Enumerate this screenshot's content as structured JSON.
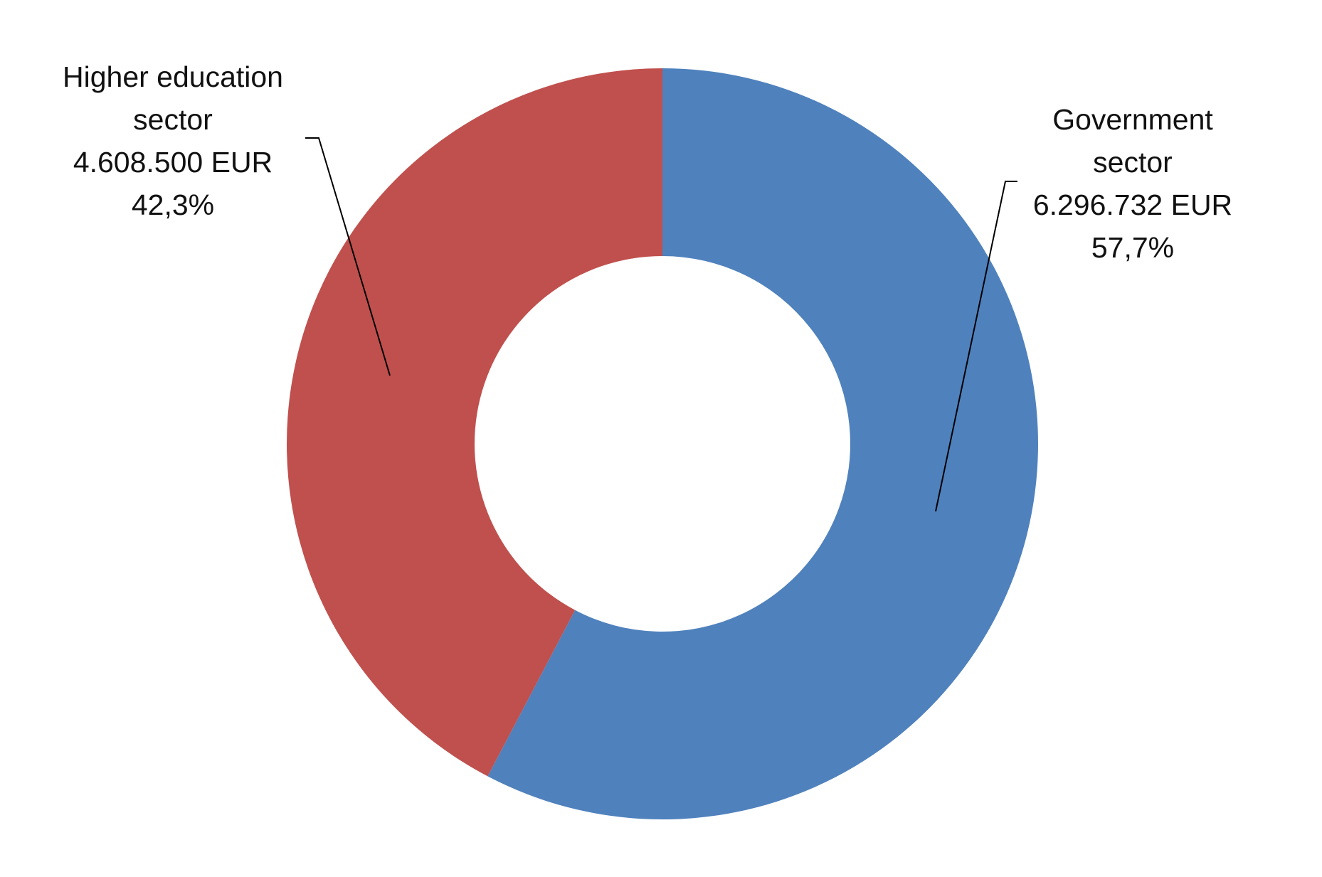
{
  "chart_data": {
    "type": "donut",
    "categories": [
      "Government sector",
      "Higher education sector"
    ],
    "values": [
      6296732,
      4608500
    ],
    "value_labels": [
      "6.296.732 EUR",
      "4.608.500 EUR"
    ],
    "percentages": [
      57.7,
      42.3
    ],
    "percentage_labels": [
      "57,7%",
      "42,3%"
    ],
    "colors": [
      "#4f81bd",
      "#c0504d"
    ]
  }
}
